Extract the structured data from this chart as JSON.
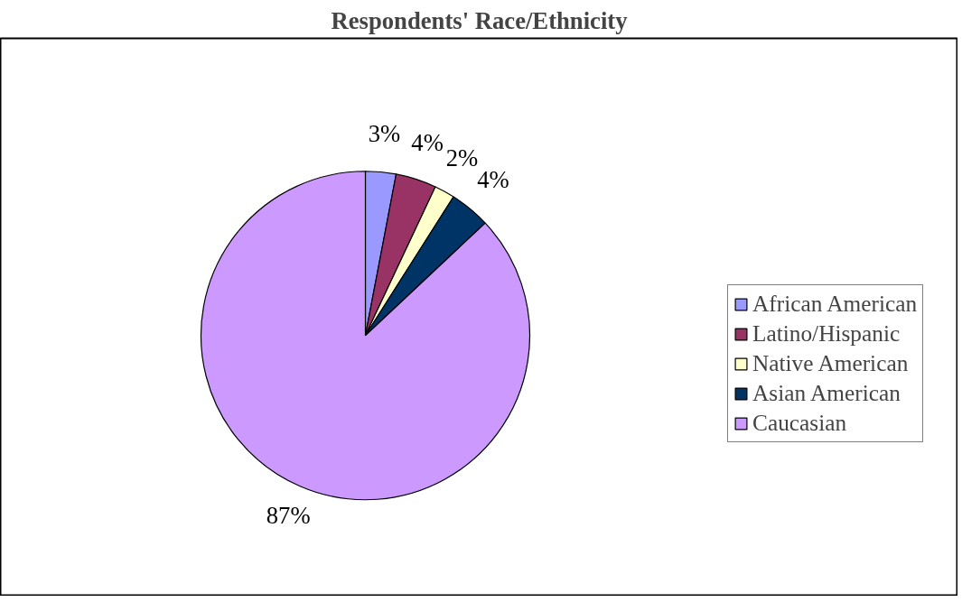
{
  "chart_data": {
    "type": "pie",
    "title": "Respondents' Race/Ethnicity",
    "categories": [
      "African American",
      "Latino/Hispanic",
      "Native American",
      "Asian American",
      "Caucasian"
    ],
    "values": [
      3,
      4,
      2,
      4,
      87
    ],
    "colors": [
      "#9999ff",
      "#993366",
      "#ffffcc",
      "#003366",
      "#cc99ff"
    ],
    "value_labels": [
      "3%",
      "4%",
      "2%",
      "4%",
      "87%"
    ],
    "legend": "right"
  }
}
